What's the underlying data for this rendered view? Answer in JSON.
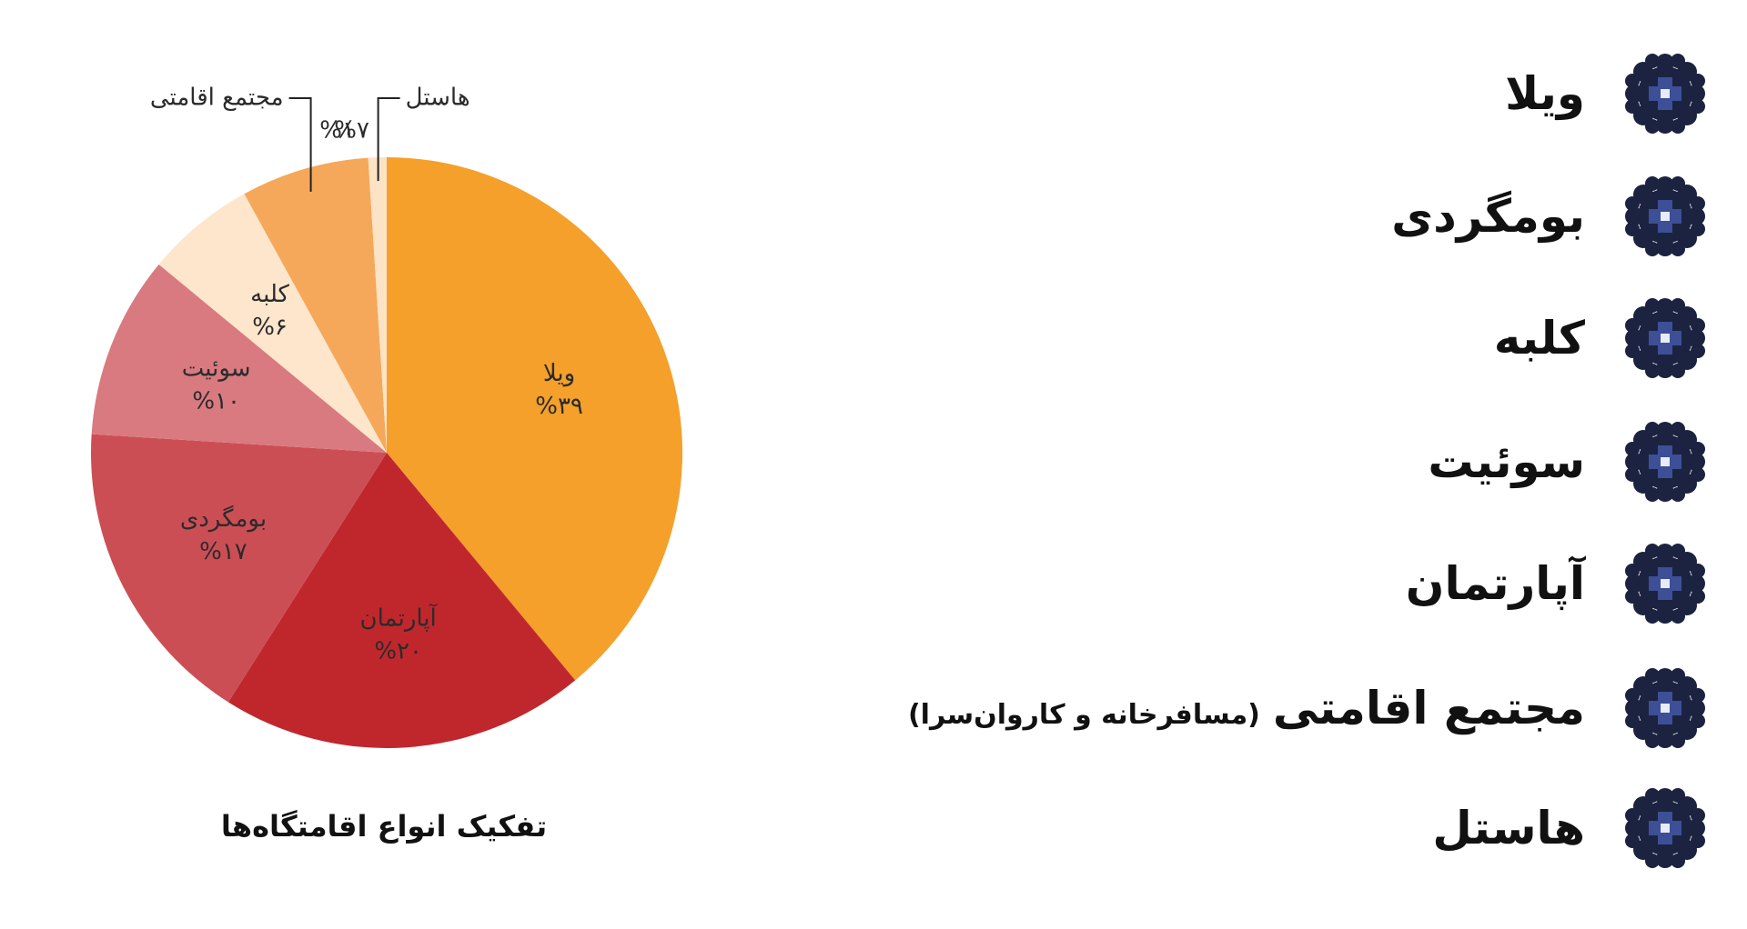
{
  "chart_data": {
    "type": "pie",
    "title": "تفکیک انواع اقامتگاه‌ها",
    "categories": [
      "ویلا",
      "آپارتمان",
      "بومگردی",
      "سوئیت",
      "کلبه",
      "مجتمع اقامتی",
      "هاستل"
    ],
    "values": [
      39,
      20,
      17,
      10,
      6,
      7,
      1
    ],
    "value_labels": [
      "%۳۹",
      "%۲۰",
      "%۱۷",
      "%۱۰",
      "%۶",
      "%۷",
      "%۱"
    ],
    "colors": [
      "#f4a02a",
      "#c0272d",
      "#cc4e55",
      "#d97a80",
      "#fde6cc",
      "#f5a85a",
      "#fde3c6"
    ]
  },
  "list": [
    {
      "label": "ویلا"
    },
    {
      "label": "بومگردی"
    },
    {
      "label": "کلبه"
    },
    {
      "label": "سوئیت"
    },
    {
      "label": "آپارتمان"
    },
    {
      "label": "مجتمع اقامتی",
      "note": "(مسافرخانه و کاروان‌سرا)"
    },
    {
      "label": "هاستل"
    }
  ]
}
